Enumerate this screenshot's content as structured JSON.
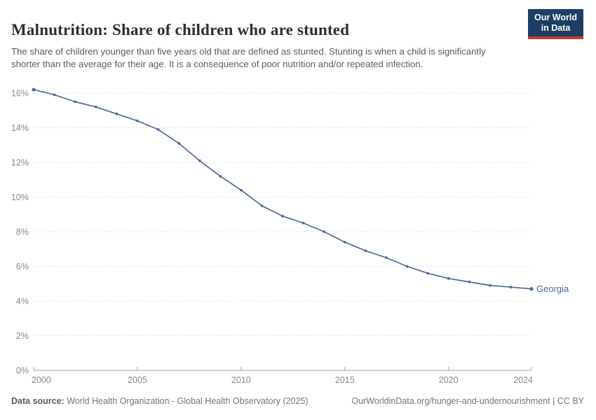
{
  "header": {
    "title": "Malnutrition: Share of children who are stunted",
    "subtitle": "The share of children younger than five years old that are defined as stunted. Stunting is when a child is significantly shorter than the average for their age. It is a consequence of poor nutrition and/or repeated infection."
  },
  "logo": {
    "line1": "Our World",
    "line2": "in Data",
    "bg_color": "#1D3D63",
    "stripe_color": "#CC3B33"
  },
  "footer": {
    "source_label": "Data source:",
    "source_text": " World Health Organization - Global Health Observatory (2025)",
    "link": "OurWorldinData.org/hunger-and-undernourishment | CC BY"
  },
  "chart_data": {
    "type": "line",
    "title": "Malnutrition: Share of children who are stunted",
    "xlabel": "",
    "ylabel": "",
    "xlim": [
      2000,
      2024
    ],
    "ylim": [
      0,
      16
    ],
    "xticks": [
      2000,
      2005,
      2010,
      2015,
      2020,
      2024
    ],
    "yticks": [
      0,
      2,
      4,
      6,
      8,
      10,
      12,
      14,
      16
    ],
    "ytick_suffix": "%",
    "grid": "dashed horizontal",
    "legend_position": "end-of-line label",
    "x": [
      2000,
      2001,
      2002,
      2003,
      2004,
      2005,
      2006,
      2007,
      2008,
      2009,
      2010,
      2011,
      2012,
      2013,
      2014,
      2015,
      2016,
      2017,
      2018,
      2019,
      2020,
      2021,
      2022,
      2023,
      2024
    ],
    "series": [
      {
        "name": "Georgia",
        "color": "#4C6A9C",
        "values": [
          16.2,
          15.9,
          15.5,
          15.2,
          14.8,
          14.4,
          13.9,
          13.1,
          12.1,
          11.2,
          10.4,
          9.5,
          8.9,
          8.5,
          8.0,
          7.4,
          6.9,
          6.5,
          6.0,
          5.6,
          5.3,
          5.1,
          4.9,
          4.8,
          4.7
        ]
      }
    ],
    "colors": {
      "gridline": "#e2e2e2",
      "axis": "#a7a7a7",
      "tick_label": "#8a8a8a"
    }
  }
}
